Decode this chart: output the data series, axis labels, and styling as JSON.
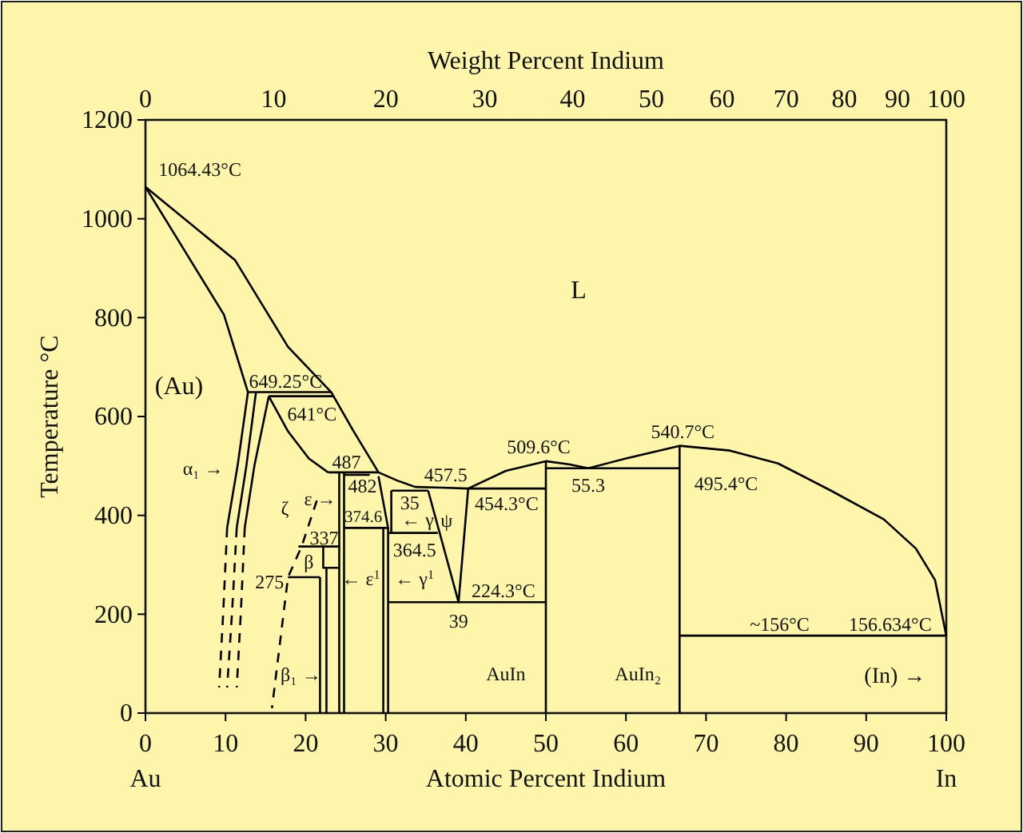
{
  "chart_data": {
    "type": "line",
    "xlabel": "Atomic Percent Indium",
    "ylabel": "Temperature °C",
    "x2label": "Weight Percent Indium",
    "xlim": [
      0,
      100
    ],
    "xticks": [
      0,
      10,
      20,
      30,
      40,
      50,
      60,
      70,
      80,
      90,
      100
    ],
    "ylim": [
      0,
      1200
    ],
    "yticks": [
      0,
      200,
      400,
      600,
      800,
      1000,
      1200
    ],
    "grid": false,
    "marker": "none",
    "series": [
      {
        "color": "#000000",
        "x": [
          0,
          11.2,
          17.8,
          23.2,
          26,
          29.1,
          31.5,
          33.7,
          37,
          40.3,
          45,
          50,
          53,
          55.3,
          60,
          66.7,
          73,
          79,
          85.6,
          92.2,
          96.2,
          98.6,
          100
        ],
        "values": [
          1064.43,
          916,
          741,
          649,
          570,
          487,
          470,
          457.5,
          456,
          454.3,
          490,
          509.6,
          503,
          495.4,
          515,
          540.7,
          531,
          505,
          450,
          392,
          333,
          269,
          156.634
        ]
      },
      {
        "color": "#000000",
        "x": [
          0,
          4.45,
          9.8,
          12.8,
          11.5,
          10.2
        ],
        "values": [
          1064.43,
          947,
          806,
          649.25,
          500,
          375
        ]
      },
      {
        "color": "#000000",
        "x": [
          12.8,
          23.2
        ],
        "values": [
          649.25,
          649.25
        ]
      },
      {
        "color": "#000000",
        "x": [
          15.4,
          23.5
        ],
        "values": [
          641,
          641
        ]
      },
      {
        "color": "#000000",
        "x": [
          13.8,
          12.6,
          11.4
        ],
        "values": [
          649.25,
          500,
          375
        ]
      },
      {
        "color": "#000000",
        "x": [
          15.4,
          13.6,
          12.4
        ],
        "values": [
          641,
          500,
          375
        ]
      },
      {
        "color": "#000000",
        "line_style": "dashed",
        "x": [
          10.2,
          9.7,
          9.2
        ],
        "values": [
          375,
          200,
          52
        ]
      },
      {
        "color": "#000000",
        "line_style": "dashed",
        "x": [
          11.4,
          10.8,
          10.2
        ],
        "values": [
          375,
          200,
          52
        ]
      },
      {
        "color": "#000000",
        "line_style": "dashed",
        "x": [
          12.4,
          11.9,
          11.4
        ],
        "values": [
          375,
          200,
          52
        ]
      },
      {
        "color": "#000000",
        "x": [
          15.4,
          17.8,
          20.4,
          22.8
        ],
        "values": [
          641,
          570,
          515,
          487
        ]
      },
      {
        "color": "#000000",
        "x": [
          22.8,
          29.1
        ],
        "values": [
          487,
          487
        ]
      },
      {
        "color": "#000000",
        "line_style": "dashed",
        "x": [
          21.4,
          19.5,
          17.8,
          15.8
        ],
        "values": [
          430,
          337,
          275,
          10
        ]
      },
      {
        "color": "#000000",
        "x": [
          17.8,
          21.8
        ],
        "values": [
          275,
          275
        ]
      },
      {
        "color": "#000000",
        "x": [
          19.1,
          24.2
        ],
        "values": [
          337,
          337
        ]
      },
      {
        "color": "#000000",
        "x": [
          22.2,
          22.2,
          24.2
        ],
        "values": [
          337,
          294,
          294
        ]
      },
      {
        "color": "#000000",
        "x": [
          21.8,
          21.8
        ],
        "values": [
          275,
          0
        ]
      },
      {
        "color": "#000000",
        "x": [
          22.6,
          22.6
        ],
        "values": [
          294,
          0
        ]
      },
      {
        "color": "#000000",
        "x": [
          24.2,
          24.2
        ],
        "values": [
          487,
          0
        ]
      },
      {
        "color": "#000000",
        "x": [
          24.8,
          24.8
        ],
        "values": [
          487,
          0
        ]
      },
      {
        "color": "#000000",
        "x": [
          24.8,
          28
        ],
        "values": [
          482,
          482
        ]
      },
      {
        "color": "#000000",
        "x": [
          29.1,
          30.3,
          30.3
        ],
        "values": [
          479,
          374.6,
          0
        ]
      },
      {
        "color": "#000000",
        "x": [
          24.8,
          30.3
        ],
        "values": [
          374.6,
          374.6
        ]
      },
      {
        "color": "#000000",
        "x": [
          29.7,
          29.7
        ],
        "values": [
          374.6,
          0
        ]
      },
      {
        "color": "#000000",
        "x": [
          30.7,
          35.3
        ],
        "values": [
          450,
          450
        ]
      },
      {
        "color": "#000000",
        "x": [
          30.7,
          30.7
        ],
        "values": [
          450,
          364.5
        ]
      },
      {
        "color": "#000000",
        "x": [
          30.3,
          36.5
        ],
        "values": [
          364.5,
          364.5
        ]
      },
      {
        "color": "#000000",
        "x": [
          35.3,
          39.1,
          40.3
        ],
        "values": [
          450,
          224.3,
          454.3
        ]
      },
      {
        "color": "#000000",
        "x": [
          30.3,
          50
        ],
        "values": [
          224.3,
          224.3
        ]
      },
      {
        "color": "#000000",
        "x": [
          40.3,
          50
        ],
        "values": [
          454.3,
          454.3
        ]
      },
      {
        "color": "#000000",
        "x": [
          50,
          50
        ],
        "values": [
          509.6,
          0
        ]
      },
      {
        "color": "#000000",
        "x": [
          50,
          66.7
        ],
        "values": [
          495.4,
          495.4
        ]
      },
      {
        "color": "#000000",
        "x": [
          66.7,
          66.7
        ],
        "values": [
          540.7,
          0
        ]
      },
      {
        "color": "#000000",
        "x": [
          66.7,
          100
        ],
        "values": [
          156.634,
          156.634
        ]
      }
    ],
    "annotations": [
      "1064.43°C",
      "L",
      "(Au)",
      "649.25°C",
      "641°C",
      "α₁ →",
      "ζ",
      "487",
      "482",
      "ε →",
      "374.6",
      "← γ",
      "35",
      "ψ",
      "457.5",
      "454.3°C",
      "364.5",
      "← γ$^{1}$",
      "224.3°C",
      "39",
      "509.6°C",
      "55.3",
      "AuIn",
      "540.7°C",
      "495.4°C",
      "AuIn₂",
      "~156°C",
      "156.634°C",
      "(In) →",
      "337",
      "β",
      "275",
      "← ε$^{1}$",
      "β₁ →",
      "Au",
      "In",
      "0",
      "10",
      "20",
      "30",
      "40",
      "50",
      "60",
      "70",
      "80",
      "90",
      "100"
    ]
  }
}
